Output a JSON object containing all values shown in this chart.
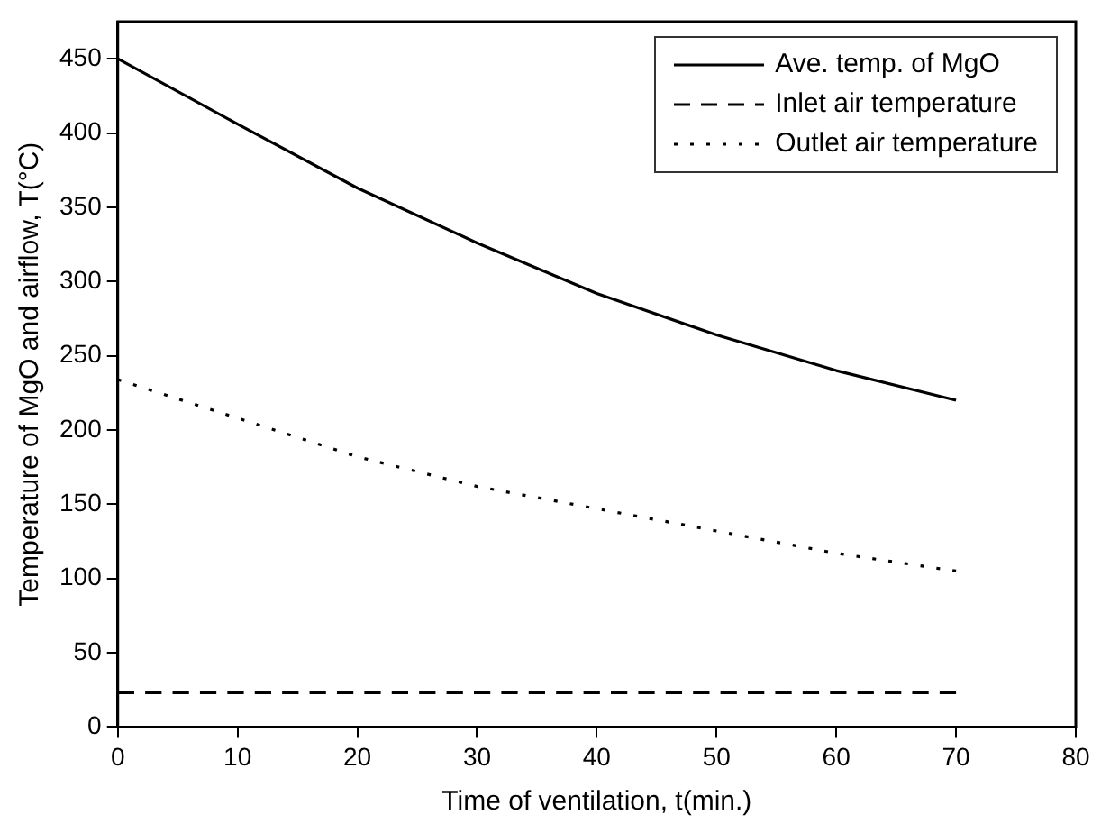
{
  "chart_data": {
    "type": "line",
    "xlabel": "Time of ventilation, t(min.)",
    "ylabel": "Temperature of MgO and airflow, T(°C)",
    "x": [
      0,
      10,
      20,
      30,
      40,
      50,
      60,
      70
    ],
    "series": [
      {
        "name": "Ave. temp. of MgO",
        "color": "#000000",
        "line_style": "solid",
        "values": [
          450,
          406,
          363,
          326,
          292,
          264,
          240,
          220
        ]
      },
      {
        "name": "Inlet air temperature",
        "color": "#000000",
        "line_style": "dashed",
        "values": [
          23,
          23,
          23,
          23,
          23,
          23,
          23,
          23
        ]
      },
      {
        "name": "Outlet air temperature",
        "color": "#000000",
        "line_style": "dotted",
        "values": [
          234,
          208,
          182,
          162,
          147,
          132,
          117,
          105
        ]
      }
    ],
    "xlim": [
      0,
      80
    ],
    "xticks": [
      0,
      10,
      20,
      30,
      40,
      50,
      60,
      70,
      80
    ],
    "ylim": [
      0,
      475
    ],
    "yticks": [
      0,
      50,
      100,
      150,
      200,
      250,
      300,
      350,
      400,
      450
    ],
    "grid": false,
    "legend": "top right",
    "marker": "none"
  }
}
